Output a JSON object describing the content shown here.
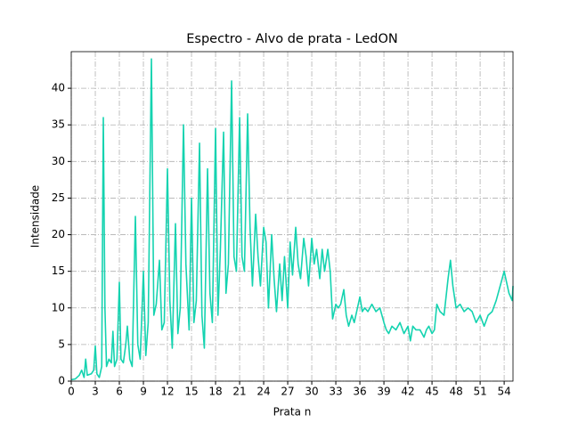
{
  "chart_data": {
    "type": "line",
    "title": "Espectro - Alvo de prata - LedON",
    "x_label": "Prata n",
    "y_label": "Intensidade",
    "xlim": [
      0,
      55.1
    ],
    "ylim": [
      0,
      45
    ],
    "xticks": [
      0,
      3,
      6,
      9,
      12,
      15,
      18,
      21,
      24,
      27,
      30,
      33,
      36,
      39,
      42,
      45,
      48,
      51,
      54
    ],
    "yticks": [
      0,
      5,
      10,
      15,
      20,
      25,
      30,
      35,
      40
    ],
    "grid": true,
    "x": [
      0,
      0.5,
      1,
      1.3,
      1.6,
      1.8,
      2,
      2.5,
      2.8,
      3,
      3.2,
      3.5,
      3.8,
      4,
      4.2,
      4.4,
      4.7,
      5,
      5.2,
      5.4,
      5.7,
      6,
      6.2,
      6.5,
      6.8,
      7,
      7.3,
      7.6,
      8,
      8.3,
      8.6,
      9,
      9.3,
      9.6,
      10,
      10.3,
      10.6,
      11,
      11.3,
      11.6,
      12,
      12.3,
      12.6,
      13,
      13.3,
      13.6,
      14,
      14.3,
      14.7,
      15,
      15.3,
      15.6,
      16,
      16.3,
      16.6,
      17,
      17.3,
      17.6,
      18,
      18.3,
      18.6,
      19,
      19.3,
      19.6,
      20,
      20.3,
      20.6,
      21,
      21.3,
      21.6,
      22,
      22.3,
      22.6,
      23,
      23.3,
      23.6,
      24,
      24.3,
      24.6,
      25,
      25.3,
      25.6,
      26,
      26.3,
      26.6,
      27,
      27.3,
      27.6,
      28,
      28.3,
      28.6,
      29,
      29.3,
      29.6,
      30,
      30.3,
      30.6,
      31,
      31.3,
      31.6,
      32,
      32.3,
      32.6,
      33,
      33.3,
      33.6,
      34,
      34.3,
      34.6,
      35,
      35.3,
      35.6,
      36,
      36.3,
      36.6,
      37,
      37.5,
      38,
      38.5,
      39,
      39.3,
      39.6,
      40,
      40.5,
      41,
      41.5,
      42,
      42.3,
      42.6,
      43,
      43.5,
      44,
      44.3,
      44.6,
      45,
      45.3,
      45.6,
      46,
      46.5,
      47,
      47.3,
      47.6,
      48,
      48.5,
      49,
      49.5,
      50,
      50.5,
      51,
      51.5,
      52,
      52.5,
      53,
      53.5,
      54,
      54.3,
      54.6,
      55,
      55.1
    ],
    "series": [
      {
        "name": "Prata",
        "color": "#14d3b0",
        "values": [
          0.2,
          0.3,
          0.8,
          1.5,
          0.5,
          3,
          0.8,
          1,
          1.5,
          4.8,
          1,
          0.5,
          2,
          36,
          10,
          2,
          3,
          2.5,
          6.8,
          2,
          3,
          13.5,
          3,
          2.5,
          5,
          7.5,
          3,
          2,
          22.5,
          5,
          3,
          15,
          3.5,
          8,
          44,
          9,
          10.5,
          16.5,
          7,
          8,
          29,
          11,
          4.5,
          21.5,
          6.5,
          10,
          35,
          16,
          7,
          25,
          8,
          11,
          32.5,
          9,
          4.5,
          29,
          12,
          8,
          34.5,
          9,
          18,
          34,
          12,
          16,
          41,
          17,
          15,
          36,
          17,
          15,
          36.5,
          21,
          13,
          22.8,
          17,
          13,
          21,
          19,
          10,
          20,
          14,
          9.5,
          16,
          11,
          17,
          10,
          19,
          14.5,
          21,
          16,
          14,
          19.5,
          17,
          13,
          19.5,
          16,
          18,
          14,
          18,
          15,
          18,
          15,
          8.5,
          10.5,
          10,
          10.5,
          12.5,
          9,
          7.5,
          9,
          8,
          9.5,
          11.5,
          9.5,
          10,
          9.5,
          10.5,
          9.5,
          10,
          8,
          7,
          6.5,
          7.5,
          7,
          8,
          6.5,
          7.5,
          5.5,
          7.5,
          7,
          7,
          6,
          7,
          7.5,
          6.5,
          7,
          10.5,
          9.5,
          9,
          14,
          16.5,
          13,
          10,
          10.5,
          9.5,
          10,
          9.5,
          8,
          9,
          7.5,
          9,
          9.5,
          11,
          13,
          15,
          13.5,
          12,
          11,
          13
        ]
      }
    ]
  }
}
